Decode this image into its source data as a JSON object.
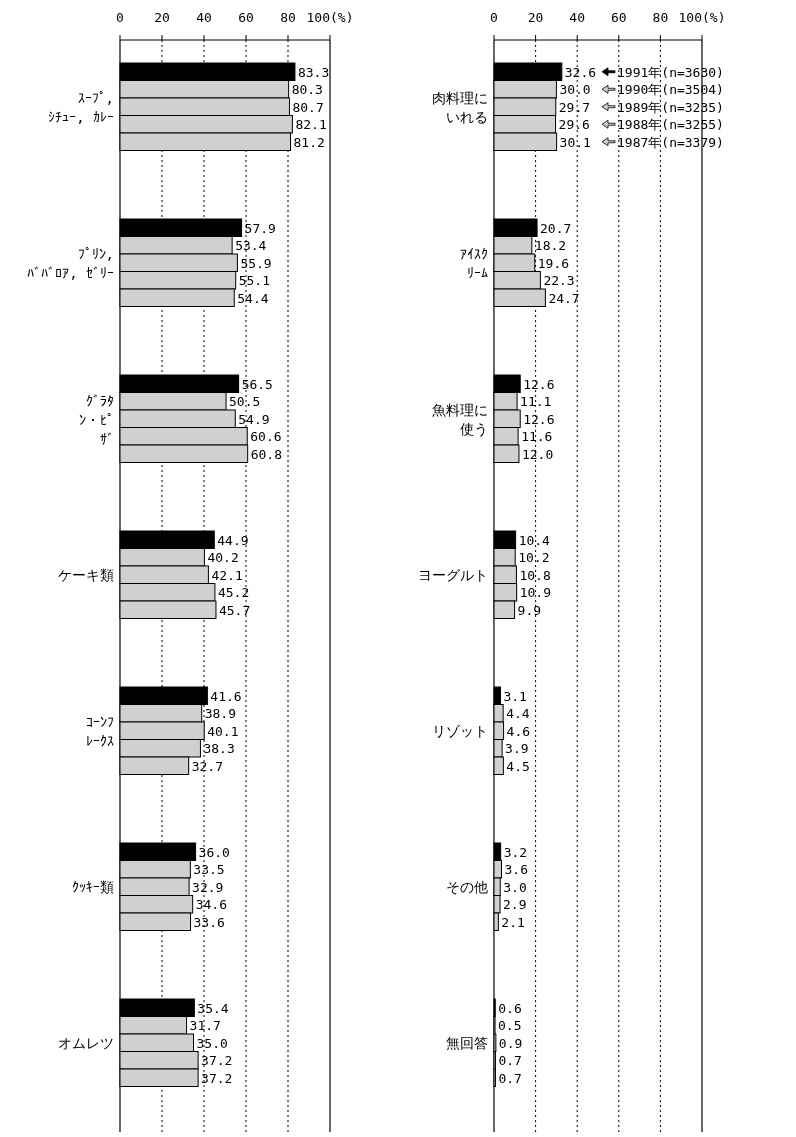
{
  "chart_data": [
    {
      "type": "bar",
      "orientation": "horizontal",
      "categories": [
        "ｽｰﾌﾟ,\nｼﾁｭｰ, ｶﾚｰ",
        "ﾌﾟﾘﾝ,\nﾊﾞﾊﾞﾛｱ, ｾﾞﾘｰ",
        "ｸﾞﾗﾀﾝ・ﾋﾟｻﾞ",
        "ケーキ類",
        "ｺｰﾝﾌﾚｰｸｽ",
        "ｸｯｷｰ類",
        "オムレツ"
      ],
      "series": [
        {
          "color": "#000000",
          "values": [
            83.3,
            57.9,
            56.5,
            44.9,
            41.6,
            36.0,
            35.4
          ],
          "value_labels": [
            "83.3",
            "57.9",
            "56.5",
            "44.9",
            "41.6",
            "36.0",
            "35.4"
          ]
        },
        {
          "color": "#d0d0d0",
          "values": [
            80.3,
            53.4,
            50.5,
            40.2,
            38.9,
            33.5,
            31.7
          ]
        },
        {
          "color": "#d0d0d0",
          "values": [
            80.7,
            55.9,
            54.9,
            42.1,
            40.1,
            32.9,
            35.0
          ],
          "value_labels": [
            "80.7",
            "55.9",
            "54.9",
            "42.1",
            "40.1",
            "32.9",
            "35.0"
          ]
        },
        {
          "color": "#d0d0d0",
          "values": [
            82.1,
            55.1,
            60.6,
            45.2,
            38.3,
            34.6,
            37.2
          ]
        },
        {
          "color": "#d0d0d0",
          "values": [
            81.2,
            54.4,
            60.8,
            45.7,
            32.7,
            33.6,
            37.2
          ]
        }
      ],
      "xlim": [
        0,
        100
      ],
      "xticks": [
        0,
        20,
        40,
        60,
        80,
        {
          "value": 100,
          "label": "100(%)"
        }
      ],
      "grid": "x",
      "data_labels": true
    },
    {
      "type": "bar",
      "orientation": "horizontal",
      "categories": [
        "肉料理にいれる",
        "ｱｲｽｸﾘｰﾑ",
        "魚料理に使う",
        "ヨーグルト",
        "リゾット",
        "その他",
        "無回答"
      ],
      "legend": "top right",
      "series": [
        {
          "name": "1991年(n=3630)",
          "color": "#000000",
          "values": [
            32.6,
            20.7,
            12.6,
            10.4,
            3.1,
            3.2,
            0.6
          ]
        },
        {
          "name": "1990年(n=3504)",
          "color": "#d0d0d0",
          "values": [
            30.0,
            18.2,
            11.1,
            10.2,
            4.4,
            3.6,
            0.5
          ],
          "value_labels": [
            "30.0",
            "18.2",
            "11.1",
            "10.2",
            "4.4",
            "3.6",
            "0.5"
          ]
        },
        {
          "name": "1989年(n=3235)",
          "color": "#d0d0d0",
          "values": [
            29.7,
            19.6,
            12.6,
            10.8,
            4.6,
            3.0,
            0.9
          ],
          "value_labels": [
            "29.7",
            "19.6",
            "12.6",
            "10.8",
            "4.6",
            "3.0",
            "0.9"
          ]
        },
        {
          "name": "1988年(n=3255)",
          "color": "#d0d0d0",
          "values": [
            29.6,
            22.3,
            11.6,
            10.9,
            3.9,
            2.9,
            0.7
          ]
        },
        {
          "name": "1987年(n=3379)",
          "color": "#d0d0d0",
          "values": [
            30.1,
            24.7,
            12.0,
            9.9,
            4.5,
            2.1,
            0.7
          ],
          "value_labels": [
            "30.1",
            "24.7",
            "12.0",
            "9.9",
            "4.5",
            "2.1",
            "0.7"
          ]
        }
      ],
      "xlim": [
        0,
        100
      ],
      "xticks": [
        0,
        20,
        40,
        60,
        80,
        {
          "value": 100,
          "label": "100(%)"
        }
      ],
      "grid": "x",
      "data_labels": true
    }
  ]
}
